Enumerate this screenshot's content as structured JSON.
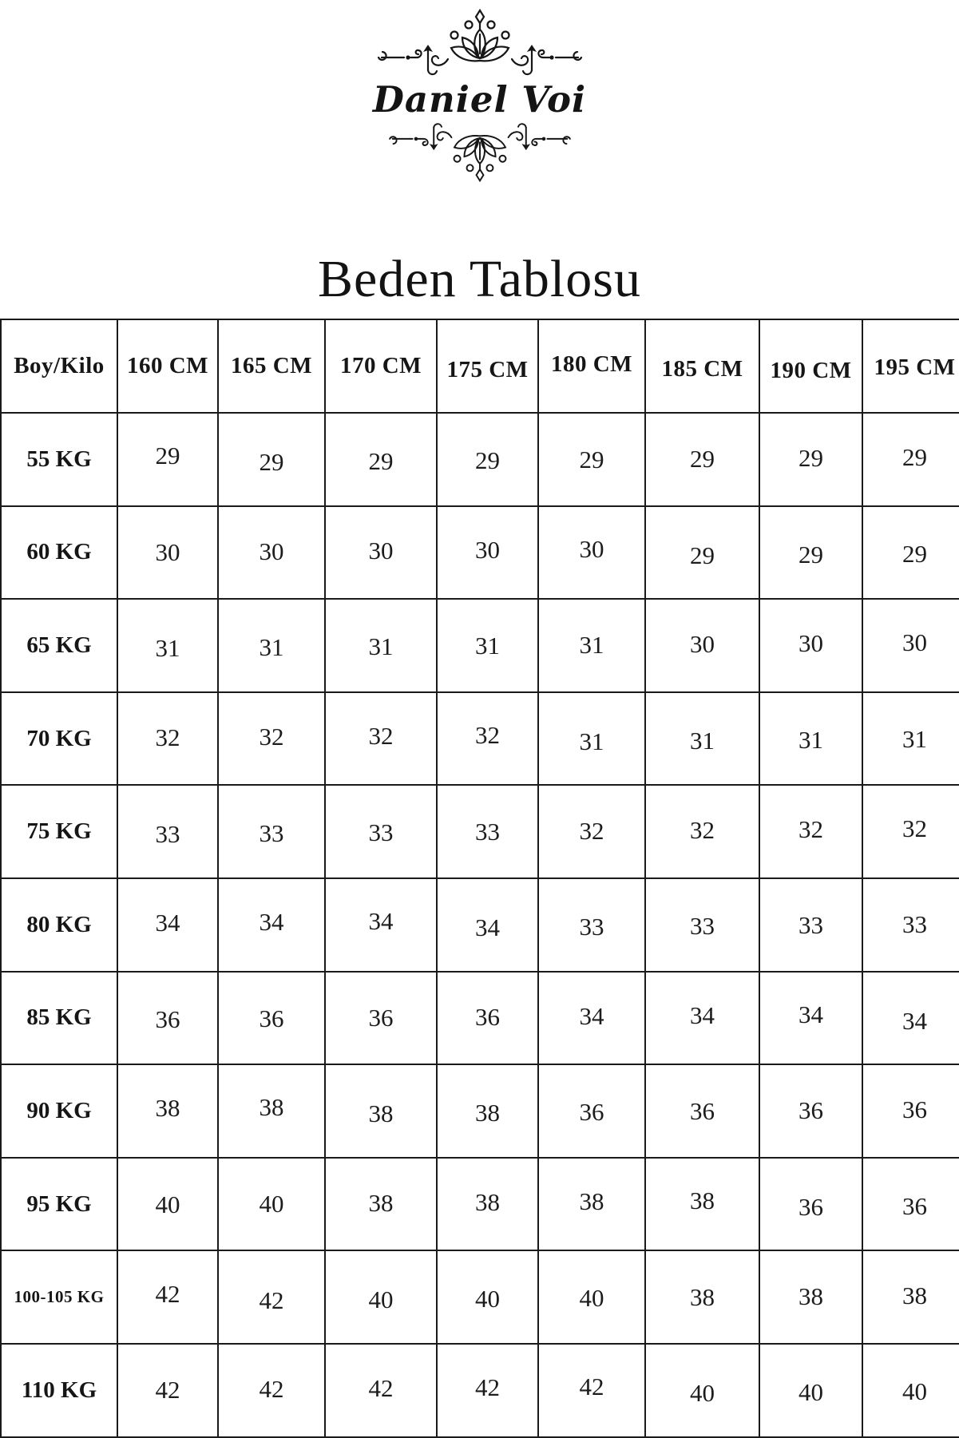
{
  "brand": {
    "name": "Daniel Voi"
  },
  "page": {
    "title": "Beden Tablosu"
  },
  "table": {
    "corner_label": "Boy/Kilo",
    "column_headers": [
      "160 CM",
      "165 CM",
      "170 CM",
      "175 CM",
      "180 CM",
      "185 CM",
      "190 CM",
      "195 CM"
    ],
    "rows": [
      {
        "label": "55 KG",
        "values": [
          "29",
          "29",
          "29",
          "29",
          "29",
          "29",
          "29",
          "29"
        ]
      },
      {
        "label": "60 KG",
        "values": [
          "30",
          "30",
          "30",
          "30",
          "30",
          "29",
          "29",
          "29"
        ]
      },
      {
        "label": "65 KG",
        "values": [
          "31",
          "31",
          "31",
          "31",
          "31",
          "30",
          "30",
          "30"
        ]
      },
      {
        "label": "70 KG",
        "values": [
          "32",
          "32",
          "32",
          "32",
          "31",
          "31",
          "31",
          "31"
        ]
      },
      {
        "label": "75 KG",
        "values": [
          "33",
          "33",
          "33",
          "33",
          "32",
          "32",
          "32",
          "32"
        ]
      },
      {
        "label": "80 KG",
        "values": [
          "34",
          "34",
          "34",
          "34",
          "33",
          "33",
          "33",
          "33"
        ]
      },
      {
        "label": "85 KG",
        "values": [
          "36",
          "36",
          "36",
          "36",
          "34",
          "34",
          "34",
          "34"
        ]
      },
      {
        "label": "90 KG",
        "values": [
          "38",
          "38",
          "38",
          "38",
          "36",
          "36",
          "36",
          "36"
        ]
      },
      {
        "label": "95 KG",
        "values": [
          "40",
          "40",
          "38",
          "38",
          "38",
          "38",
          "36",
          "36"
        ]
      },
      {
        "label": "100-105 KG",
        "values": [
          "42",
          "42",
          "40",
          "40",
          "40",
          "38",
          "38",
          "38"
        ]
      },
      {
        "label": "110 KG",
        "values": [
          "42",
          "42",
          "42",
          "42",
          "42",
          "40",
          "40",
          "40"
        ]
      }
    ]
  },
  "colors": {
    "ink": "#161616",
    "background": "#ffffff"
  }
}
